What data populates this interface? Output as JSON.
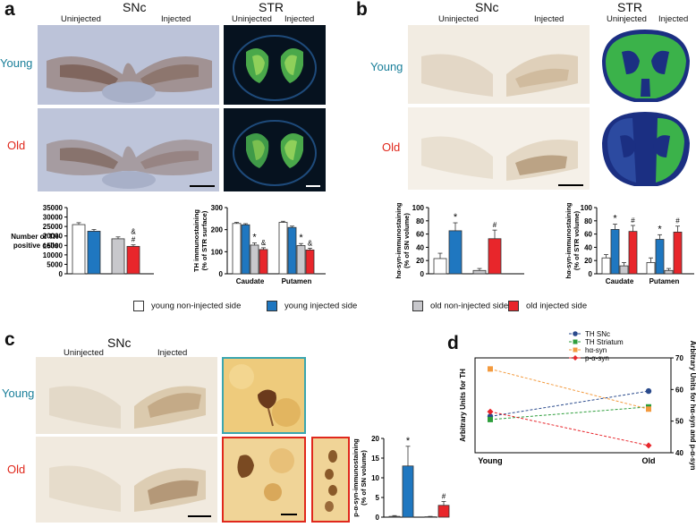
{
  "panel_a": {
    "letter": "a",
    "snc_title": "SNc",
    "str_title": "STR",
    "uninjected": "Uninjected",
    "injected": "Injected",
    "young": "Young",
    "old": "Old"
  },
  "panel_b": {
    "letter": "b",
    "snc_title": "SNc",
    "str_title": "STR",
    "uninjected": "Uninjected",
    "injected": "Injected",
    "young": "Young",
    "old": "Old"
  },
  "panel_c": {
    "letter": "c",
    "snc_title": "SNc",
    "uninjected": "Uninjected",
    "injected": "Injected",
    "young": "Young",
    "old": "Old"
  },
  "panel_d": {
    "letter": "d"
  },
  "legend": {
    "items": [
      {
        "label": "young non-injected side",
        "color": "#ffffff"
      },
      {
        "label": "young injected side",
        "color": "#1f77c0"
      },
      {
        "label": "old non-injected side",
        "color": "#c8c8cc"
      },
      {
        "label": "old injected side",
        "color": "#e8262b"
      }
    ]
  },
  "colors": {
    "young_non": "#ffffff",
    "young_inj": "#1f77c0",
    "old_non": "#c8c8cc",
    "old_inj": "#e8262b",
    "teal_label": "#1a7f9a",
    "red_label": "#e0281c"
  },
  "chart_data": [
    {
      "id": "a_cells",
      "type": "bar",
      "ylabel": "Number of TH-positive cells",
      "yticks": [
        0,
        5000,
        10000,
        15000,
        20000,
        25000,
        30000,
        35000
      ],
      "ytick_labels": [
        "0",
        "5000",
        "10000",
        "15000",
        "20000",
        "25000",
        "30000",
        "35000"
      ],
      "ylim": [
        0,
        35000
      ],
      "groups": [
        {
          "name": "",
          "values": [
            26000,
            22500,
            18500,
            14500
          ],
          "errors": [
            1000,
            900,
            1000,
            800
          ],
          "annotations": [
            "",
            "",
            "",
            "&\n#"
          ]
        }
      ]
    },
    {
      "id": "a_str",
      "type": "bar",
      "ylabel": "TH immunostaining (% of STR surface)",
      "yticks": [
        0,
        100,
        200,
        300
      ],
      "ytick_labels": [
        "0",
        "100",
        "200",
        "300"
      ],
      "ylim": [
        0,
        300
      ],
      "groups": [
        {
          "name": "Caudate",
          "values": [
            228,
            222,
            130,
            110
          ],
          "errors": [
            5,
            5,
            10,
            8
          ],
          "annotations": [
            "",
            "",
            "*",
            "&"
          ]
        },
        {
          "name": "Putamen",
          "values": [
            233,
            210,
            128,
            108
          ],
          "errors": [
            5,
            6,
            9,
            8
          ],
          "annotations": [
            "",
            "",
            "*",
            "&"
          ]
        }
      ]
    },
    {
      "id": "b_sn",
      "type": "bar",
      "ylabel": "hα-syn-immunostaining (% of SN volume)",
      "yticks": [
        0,
        20,
        40,
        60,
        80,
        100
      ],
      "ytick_labels": [
        "0",
        "20",
        "40",
        "60",
        "80",
        "100"
      ],
      "ylim": [
        0,
        100
      ],
      "groups": [
        {
          "name": "",
          "values": [
            23,
            65,
            5,
            53
          ],
          "errors": [
            8,
            12,
            3,
            13
          ],
          "annotations": [
            "",
            "*",
            "",
            "#"
          ]
        }
      ]
    },
    {
      "id": "b_str",
      "type": "bar",
      "ylabel": "hα-syn-immunostaining (% of STR volume)",
      "yticks": [
        0,
        20,
        40,
        60,
        80,
        100
      ],
      "ytick_labels": [
        "0",
        "20",
        "40",
        "60",
        "80",
        "100"
      ],
      "ylim": [
        0,
        100
      ],
      "groups": [
        {
          "name": "Caudate",
          "values": [
            24,
            67,
            12,
            64
          ],
          "errors": [
            5,
            8,
            5,
            9
          ],
          "annotations": [
            "",
            "*",
            "",
            "#"
          ]
        },
        {
          "name": "Putamen",
          "values": [
            17,
            52,
            5,
            63
          ],
          "errors": [
            7,
            7,
            3,
            9
          ],
          "annotations": [
            "",
            "*",
            "",
            "#"
          ]
        }
      ]
    },
    {
      "id": "c_psyn",
      "type": "bar",
      "ylabel": "p-α-syn-immunostaining (% of SN volume)",
      "yticks": [
        0,
        5,
        10,
        15,
        20
      ],
      "ytick_labels": [
        "0",
        "5",
        "10",
        "15",
        "20"
      ],
      "ylim": [
        0,
        20
      ],
      "groups": [
        {
          "name": "",
          "values": [
            0.2,
            13,
            0.1,
            3
          ],
          "errors": [
            0.2,
            5,
            0.1,
            1
          ],
          "annotations": [
            "",
            "*",
            "",
            "#"
          ]
        }
      ]
    },
    {
      "id": "d_lines",
      "type": "line",
      "categories": [
        "Young",
        "Old"
      ],
      "ylabel_left": "Arbitrary Units for TH",
      "ylabel_right": "Arbitrary Units for hα-syn and p-α-syn",
      "yticks_right": [
        40,
        50,
        60,
        70
      ],
      "ytick_labels_right": [
        "40",
        "50",
        "60",
        "70"
      ],
      "ylim_right": [
        40,
        70
      ],
      "series": [
        {
          "name": "TH SNc",
          "values": [
            51.5,
            59.5
          ],
          "color": "#2a4a8c",
          "marker": "circle"
        },
        {
          "name": "TH Striatum",
          "values": [
            50.5,
            54.5
          ],
          "color": "#2e9e3c",
          "marker": "square"
        },
        {
          "name": "hα-syn",
          "values": [
            66.5,
            53.8
          ],
          "color": "#f39a3e",
          "marker": "square"
        },
        {
          "name": "p-α-syn",
          "values": [
            53,
            42.3
          ],
          "color": "#e8262b",
          "marker": "diamond"
        }
      ],
      "legend_position": "top-right"
    }
  ]
}
